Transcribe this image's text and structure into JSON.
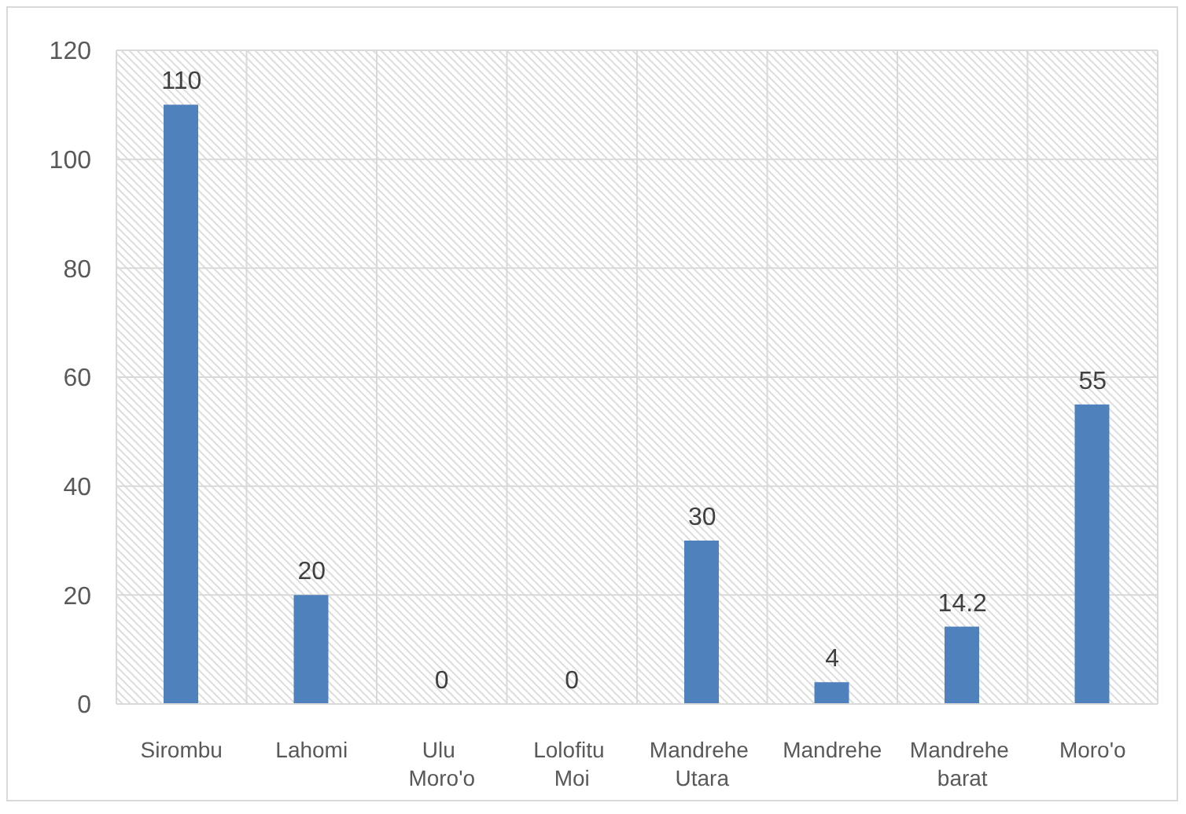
{
  "chart_data": {
    "type": "bar",
    "categories": [
      "Sirombu",
      "Lahomi",
      "Ulu Moro'o",
      "Lolofitu Moi",
      "Mandrehe Utara",
      "Mandrehe",
      "Mandrehe barat",
      "Moro'o"
    ],
    "values": [
      110,
      20,
      0,
      0,
      30,
      4,
      14.2,
      55
    ],
    "color": "#4f81bd",
    "ylim": [
      0,
      120
    ],
    "yticks": [
      0,
      20,
      40,
      60,
      80,
      100,
      120
    ],
    "grid": true,
    "data_labels": true
  }
}
